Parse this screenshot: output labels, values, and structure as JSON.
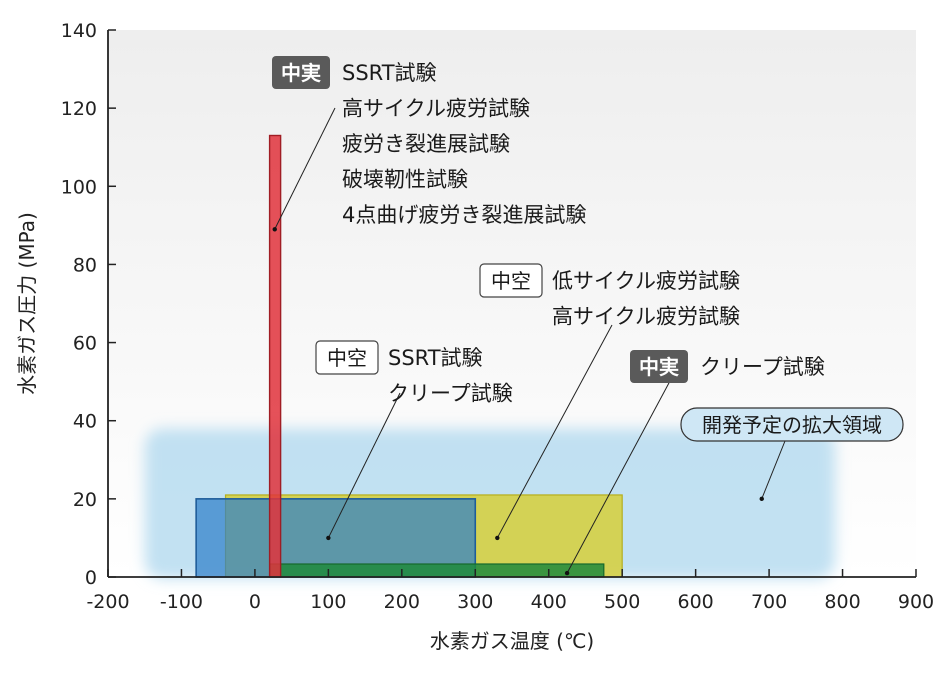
{
  "chart_data": {
    "type": "range-box",
    "xlabel": "水素ガス温度 (℃)",
    "ylabel": "水素ガス圧力 (MPa)",
    "xlim": [
      -200,
      900
    ],
    "ylim": [
      0,
      140
    ],
    "xticks": [
      -200,
      -100,
      0,
      100,
      200,
      300,
      400,
      500,
      600,
      700,
      800,
      900
    ],
    "yticks": [
      0,
      20,
      40,
      60,
      80,
      100,
      120,
      140
    ],
    "grid": false,
    "colors": {
      "plot_bg_top": "#eeeeee",
      "plot_bg_bottom": "#ffffff",
      "expansion": "#b7dcf0",
      "red": "#e0333c",
      "yellow": "#d6cf3a",
      "blue": "#2f80c9",
      "green": "#1f8a3c",
      "badge_solid": "#5a5a5a"
    },
    "regions": [
      {
        "key": "expansion",
        "x": [
          -150,
          790
        ],
        "y": [
          0,
          38
        ]
      },
      {
        "key": "yellow",
        "x": [
          -40,
          500
        ],
        "y": [
          0,
          21
        ]
      },
      {
        "key": "blue",
        "x": [
          -80,
          300
        ],
        "y": [
          0,
          20
        ]
      },
      {
        "key": "green",
        "x": [
          20,
          475
        ],
        "y": [
          0,
          2
        ]
      },
      {
        "key": "red",
        "x": [
          20,
          35
        ],
        "y": [
          0,
          113
        ]
      }
    ],
    "annotations": [
      {
        "key": "solid1",
        "badge": "中実",
        "badge_style": "solid",
        "lines": [
          "SSRT試験",
          "高サイクル疲労試験",
          "疲労き裂進展試験",
          "破壊靭性試験",
          "4点曲げ疲労き裂進展試験"
        ],
        "point": [
          27,
          89
        ]
      },
      {
        "key": "hollow1",
        "badge": "中空",
        "badge_style": "hollow",
        "lines": [
          "低サイクル疲労試験",
          "高サイクル疲労試験"
        ],
        "point": [
          330,
          10
        ]
      },
      {
        "key": "hollow2",
        "badge": "中空",
        "badge_style": "hollow",
        "lines": [
          "SSRT試験",
          "クリープ試験"
        ],
        "point": [
          100,
          10
        ]
      },
      {
        "key": "solid2",
        "badge": "中実",
        "badge_style": "solid",
        "lines": [
          "クリープ試験"
        ],
        "point": [
          425,
          1
        ]
      }
    ],
    "callout": {
      "label": "開発予定の拡大領域",
      "point": [
        690,
        20
      ]
    }
  }
}
